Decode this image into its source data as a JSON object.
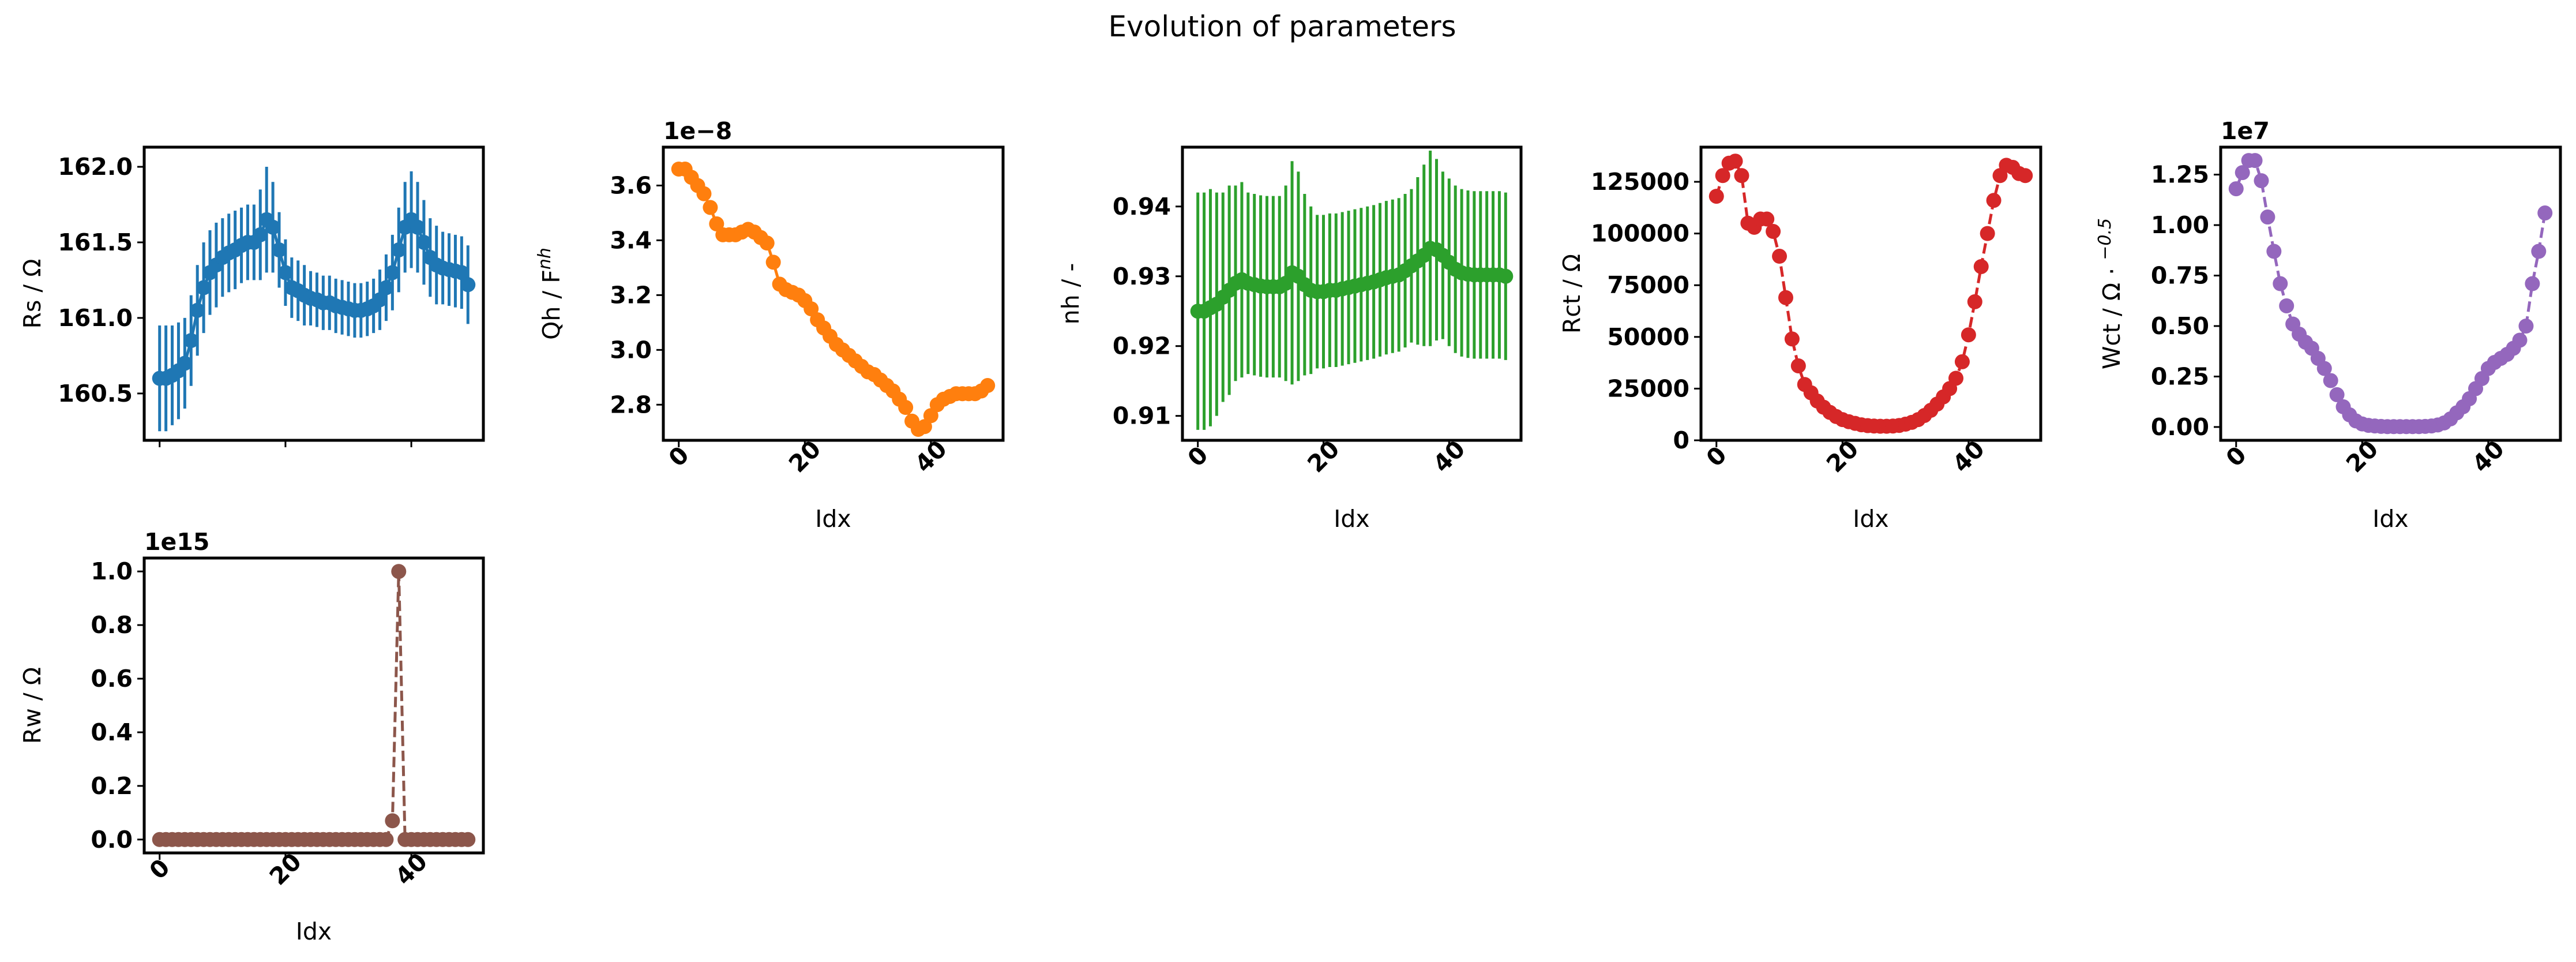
{
  "suptitle": "Evolution of parameters",
  "chart_data": [
    {
      "type": "line",
      "id": "rs",
      "ylabel": "Rs / Ω",
      "xlabel": "",
      "color": "#1f77b4",
      "linestyle": "solid",
      "errorbars": true,
      "x": [
        0,
        1,
        2,
        3,
        4,
        5,
        6,
        7,
        8,
        9,
        10,
        11,
        12,
        13,
        14,
        15,
        16,
        17,
        18,
        19,
        20,
        21,
        22,
        23,
        24,
        25,
        26,
        27,
        28,
        29,
        30,
        31,
        32,
        33,
        34,
        35,
        36,
        37,
        38,
        39,
        40,
        41,
        42,
        43,
        44,
        45,
        46,
        47,
        48,
        49
      ],
      "y": [
        160.6,
        160.6,
        160.62,
        160.65,
        160.7,
        160.85,
        161.05,
        161.2,
        161.3,
        161.35,
        161.4,
        161.43,
        161.45,
        161.48,
        161.5,
        161.5,
        161.55,
        161.65,
        161.6,
        161.45,
        161.3,
        161.2,
        161.18,
        161.15,
        161.13,
        161.12,
        161.1,
        161.1,
        161.08,
        161.07,
        161.06,
        161.05,
        161.05,
        161.06,
        161.08,
        161.12,
        161.2,
        161.3,
        161.45,
        161.6,
        161.65,
        161.6,
        161.5,
        161.4,
        161.35,
        161.33,
        161.32,
        161.31,
        161.3,
        161.22
      ],
      "yerr": [
        0.35,
        0.35,
        0.33,
        0.32,
        0.3,
        0.3,
        0.3,
        0.3,
        0.28,
        0.28,
        0.26,
        0.26,
        0.26,
        0.25,
        0.25,
        0.25,
        0.3,
        0.35,
        0.3,
        0.25,
        0.22,
        0.2,
        0.2,
        0.2,
        0.18,
        0.18,
        0.18,
        0.18,
        0.18,
        0.18,
        0.18,
        0.18,
        0.18,
        0.18,
        0.18,
        0.2,
        0.22,
        0.25,
        0.28,
        0.3,
        0.32,
        0.3,
        0.28,
        0.26,
        0.26,
        0.24,
        0.24,
        0.24,
        0.24,
        0.26
      ],
      "ylim": [
        160.19,
        162.13
      ],
      "xlim": [
        -2.45,
        51.45
      ],
      "yticks": [
        160.5,
        161.0,
        161.5,
        162.0
      ],
      "ytick_labels": [
        "160.5",
        "161.0",
        "161.5",
        "162.0"
      ],
      "xticks": [
        0,
        20,
        40
      ],
      "xtick_labels": [],
      "offset": ""
    },
    {
      "type": "line",
      "id": "qh",
      "ylabel": "Qh / F",
      "ylabel_sup": "nh",
      "xlabel": "Idx",
      "color": "#ff7f0e",
      "linestyle": "solid",
      "errorbars": false,
      "x": [
        0,
        1,
        2,
        3,
        4,
        5,
        6,
        7,
        8,
        9,
        10,
        11,
        12,
        13,
        14,
        15,
        16,
        17,
        18,
        19,
        20,
        21,
        22,
        23,
        24,
        25,
        26,
        27,
        28,
        29,
        30,
        31,
        32,
        33,
        34,
        35,
        36,
        37,
        38,
        39,
        40,
        41,
        42,
        43,
        44,
        45,
        46,
        47,
        48,
        49
      ],
      "y": [
        3.66,
        3.66,
        3.63,
        3.6,
        3.57,
        3.52,
        3.46,
        3.42,
        3.42,
        3.42,
        3.43,
        3.44,
        3.43,
        3.41,
        3.39,
        3.32,
        3.24,
        3.22,
        3.21,
        3.2,
        3.18,
        3.15,
        3.11,
        3.08,
        3.05,
        3.02,
        3.0,
        2.98,
        2.96,
        2.94,
        2.92,
        2.91,
        2.89,
        2.87,
        2.85,
        2.82,
        2.79,
        2.74,
        2.71,
        2.72,
        2.76,
        2.8,
        2.82,
        2.83,
        2.84,
        2.84,
        2.84,
        2.84,
        2.85,
        2.87
      ],
      "ylim": [
        2.67,
        3.74
      ],
      "xlim": [
        -2.45,
        51.45
      ],
      "yticks": [
        2.8,
        3.0,
        3.2,
        3.4,
        3.6
      ],
      "ytick_labels": [
        "2.8",
        "3.0",
        "3.2",
        "3.4",
        "3.6"
      ],
      "xticks": [
        0,
        20,
        40
      ],
      "xtick_labels": [
        "0",
        "20",
        "40"
      ],
      "offset": "1e−8"
    },
    {
      "type": "line",
      "id": "nh",
      "ylabel": "nh / -",
      "xlabel": "Idx",
      "color": "#2ca02c",
      "linestyle": "solid",
      "errorbars": true,
      "x": [
        0,
        1,
        2,
        3,
        4,
        5,
        6,
        7,
        8,
        9,
        10,
        11,
        12,
        13,
        14,
        15,
        16,
        17,
        18,
        19,
        20,
        21,
        22,
        23,
        24,
        25,
        26,
        27,
        28,
        29,
        30,
        31,
        32,
        33,
        34,
        35,
        36,
        37,
        38,
        39,
        40,
        41,
        42,
        43,
        44,
        45,
        46,
        47,
        48,
        49
      ],
      "y": [
        0.925,
        0.925,
        0.9255,
        0.926,
        0.927,
        0.928,
        0.929,
        0.9295,
        0.929,
        0.9288,
        0.9286,
        0.9285,
        0.9285,
        0.9285,
        0.929,
        0.9305,
        0.93,
        0.9288,
        0.928,
        0.9278,
        0.9278,
        0.928,
        0.928,
        0.9282,
        0.9284,
        0.9286,
        0.9288,
        0.929,
        0.9292,
        0.9295,
        0.9298,
        0.93,
        0.9302,
        0.9308,
        0.9315,
        0.9322,
        0.933,
        0.934,
        0.9338,
        0.933,
        0.932,
        0.931,
        0.9305,
        0.9303,
        0.9302,
        0.9302,
        0.9302,
        0.9302,
        0.9302,
        0.93
      ],
      "yerr": [
        0.017,
        0.017,
        0.017,
        0.016,
        0.015,
        0.015,
        0.014,
        0.014,
        0.013,
        0.013,
        0.013,
        0.013,
        0.013,
        0.013,
        0.014,
        0.016,
        0.015,
        0.013,
        0.012,
        0.011,
        0.011,
        0.011,
        0.011,
        0.011,
        0.011,
        0.011,
        0.011,
        0.011,
        0.011,
        0.011,
        0.011,
        0.011,
        0.011,
        0.011,
        0.011,
        0.012,
        0.013,
        0.014,
        0.013,
        0.012,
        0.012,
        0.012,
        0.012,
        0.012,
        0.012,
        0.012,
        0.012,
        0.012,
        0.012,
        0.012
      ],
      "ylim": [
        0.9065,
        0.9485
      ],
      "xlim": [
        -2.45,
        51.45
      ],
      "yticks": [
        0.91,
        0.92,
        0.93,
        0.94
      ],
      "ytick_labels": [
        "0.91",
        "0.92",
        "0.93",
        "0.94"
      ],
      "xticks": [
        0,
        20,
        40
      ],
      "xtick_labels": [
        "0",
        "20",
        "40"
      ],
      "offset": ""
    },
    {
      "type": "line",
      "id": "rct",
      "ylabel": "Rct / Ω",
      "xlabel": "Idx",
      "color": "#d62728",
      "linestyle": "dashed",
      "errorbars": false,
      "x": [
        0,
        1,
        2,
        3,
        4,
        5,
        6,
        7,
        8,
        9,
        10,
        11,
        12,
        13,
        14,
        15,
        16,
        17,
        18,
        19,
        20,
        21,
        22,
        23,
        24,
        25,
        26,
        27,
        28,
        29,
        30,
        31,
        32,
        33,
        34,
        35,
        36,
        37,
        38,
        39,
        40,
        41,
        42,
        43,
        44,
        45,
        46,
        47,
        48,
        49
      ],
      "y": [
        118000,
        128000,
        134000,
        135000,
        128000,
        105000,
        103000,
        107000,
        107000,
        101000,
        89000,
        69000,
        49000,
        36000,
        27000,
        23000,
        19000,
        16000,
        13500,
        11500,
        10000,
        9000,
        8200,
        7500,
        7100,
        6900,
        6800,
        6800,
        6900,
        7200,
        7800,
        8700,
        10000,
        12000,
        14500,
        17500,
        21000,
        25000,
        30000,
        38000,
        51000,
        67000,
        84000,
        100000,
        116000,
        128000,
        133000,
        132000,
        129000,
        128000
      ],
      "ylim": [
        0,
        141750
      ],
      "xlim": [
        -2.45,
        51.45
      ],
      "yticks": [
        0,
        25000,
        50000,
        75000,
        100000,
        125000
      ],
      "ytick_labels": [
        "0",
        "25000",
        "50000",
        "75000",
        "100000",
        "125000"
      ],
      "xticks": [
        0,
        20,
        40
      ],
      "xtick_labels": [
        "0",
        "20",
        "40"
      ],
      "offset": ""
    },
    {
      "type": "line",
      "id": "wct",
      "ylabel": "Wct / Ω · ",
      "ylabel_sup": "−0.5",
      "xlabel": "Idx",
      "color": "#9467bd",
      "linestyle": "dashed",
      "errorbars": false,
      "x": [
        0,
        1,
        2,
        3,
        4,
        5,
        6,
        7,
        8,
        9,
        10,
        11,
        12,
        13,
        14,
        15,
        16,
        17,
        18,
        19,
        20,
        21,
        22,
        23,
        24,
        25,
        26,
        27,
        28,
        29,
        30,
        31,
        32,
        33,
        34,
        35,
        36,
        37,
        38,
        39,
        40,
        41,
        42,
        43,
        44,
        45,
        46,
        47,
        48,
        49
      ],
      "y": [
        1.18,
        1.26,
        1.32,
        1.32,
        1.22,
        1.04,
        0.87,
        0.71,
        0.6,
        0.51,
        0.46,
        0.42,
        0.39,
        0.34,
        0.29,
        0.23,
        0.16,
        0.1,
        0.06,
        0.03,
        0.015,
        0.008,
        0.005,
        0.003,
        0.002,
        0.002,
        0.002,
        0.002,
        0.002,
        0.002,
        0.003,
        0.005,
        0.01,
        0.02,
        0.04,
        0.07,
        0.1,
        0.14,
        0.19,
        0.24,
        0.29,
        0.32,
        0.34,
        0.36,
        0.39,
        0.43,
        0.5,
        0.71,
        0.87,
        1.06
      ],
      "ylim": [
        -0.066,
        1.386
      ],
      "xlim": [
        -2.45,
        51.45
      ],
      "yticks": [
        0,
        0.25,
        0.5,
        0.75,
        1.0,
        1.25
      ],
      "ytick_labels": [
        "0.00",
        "0.25",
        "0.50",
        "0.75",
        "1.00",
        "1.25"
      ],
      "xticks": [
        0,
        20,
        40
      ],
      "xtick_labels": [
        "0",
        "20",
        "40"
      ],
      "offset": "1e7"
    },
    {
      "type": "line",
      "id": "rw",
      "ylabel": "Rw / Ω",
      "xlabel": "Idx",
      "color": "#8c564b",
      "linestyle": "dashed",
      "errorbars": false,
      "x": [
        0,
        1,
        2,
        3,
        4,
        5,
        6,
        7,
        8,
        9,
        10,
        11,
        12,
        13,
        14,
        15,
        16,
        17,
        18,
        19,
        20,
        21,
        22,
        23,
        24,
        25,
        26,
        27,
        28,
        29,
        30,
        31,
        32,
        33,
        34,
        35,
        36,
        37,
        38,
        39,
        40,
        41,
        42,
        43,
        44,
        45,
        46,
        47,
        48,
        49
      ],
      "y": [
        0,
        0,
        0,
        0,
        0,
        0,
        0,
        0,
        0,
        0,
        0,
        0,
        0,
        0,
        0,
        0,
        0,
        0,
        0,
        0,
        0,
        0,
        0,
        0,
        0,
        0,
        0,
        0,
        0,
        0,
        0,
        0,
        0,
        0,
        0,
        0,
        0,
        0.07,
        1.0,
        0,
        0,
        0,
        0,
        0,
        0,
        0,
        0,
        0,
        0,
        0
      ],
      "ylim": [
        -0.05,
        1.05
      ],
      "xlim": [
        -2.45,
        51.45
      ],
      "yticks": [
        0,
        0.2,
        0.4,
        0.6,
        0.8,
        1.0
      ],
      "ytick_labels": [
        "0.0",
        "0.2",
        "0.4",
        "0.6",
        "0.8",
        "1.0"
      ],
      "xticks": [
        0,
        20,
        40
      ],
      "xtick_labels": [
        "0",
        "20",
        "40"
      ],
      "offset": "1e15"
    }
  ]
}
